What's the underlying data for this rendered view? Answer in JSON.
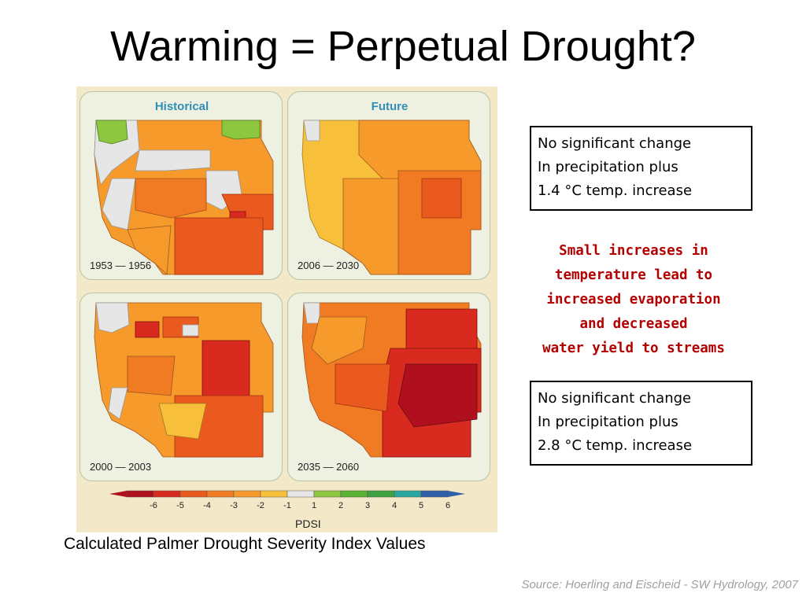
{
  "slide": {
    "title": "Warming = Perpetual Drought?",
    "caption": "Calculated Palmer Drought Severity Index Values",
    "source": "Source: Hoerling and Eischeid - SW Hydrology, 2007"
  },
  "figure": {
    "headers": {
      "historical": "Historical",
      "future": "Future"
    },
    "panels": [
      {
        "period": "1953  — 1956",
        "dominant": "orange"
      },
      {
        "period": "2006  — 2030",
        "dominant": "light-orange"
      },
      {
        "period": "2000  — 2003",
        "dominant": "orange"
      },
      {
        "period": "2035  — 2060",
        "dominant": "red"
      }
    ],
    "legend": {
      "title": "PDSI",
      "labels": [
        "-6",
        "-5",
        "-4",
        "-3",
        "-2",
        "-1",
        "1",
        "2",
        "3",
        "4",
        "5",
        "6"
      ],
      "colors": [
        "#b0101e",
        "#d92a20",
        "#ea5a1e",
        "#f07b22",
        "#f59a2b",
        "#f8c03a",
        "#e6e6e6",
        "#8dc63f",
        "#5ab132",
        "#3fa242",
        "#2aa7a0",
        "#2f5fa8"
      ]
    }
  },
  "notes": {
    "box1": [
      "No significant change",
      "In precipitation plus",
      "1.4 °C temp. increase"
    ],
    "middle": [
      "Small increases in",
      "temperature lead to",
      "increased evaporation",
      "and decreased",
      "water yield to streams"
    ],
    "box2": [
      "No significant change",
      "In precipitation plus",
      "2.8 °C temp. increase"
    ]
  }
}
